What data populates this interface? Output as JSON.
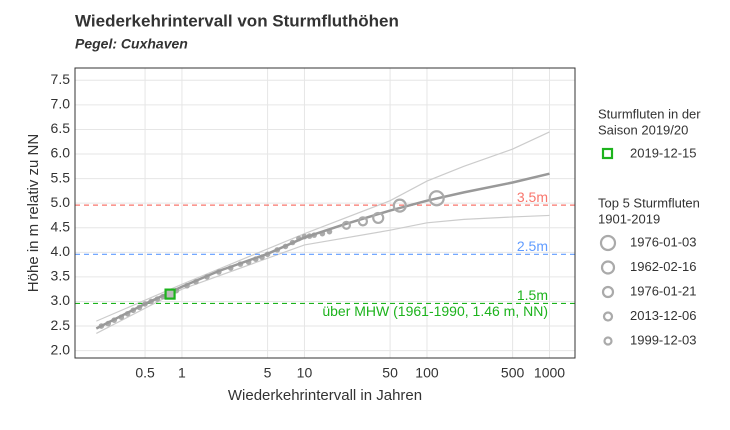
{
  "chart_data": {
    "type": "scatter",
    "title": "Wiederkehrintervall von Sturmfluthöhen",
    "subtitle": "Pegel: Cuxhaven",
    "x_label": "Wiederkehrintervall in Jahren",
    "y_label": "Höhe in m relativ zu NN",
    "log_x": true,
    "grid": true,
    "xlim": [
      0.134,
      1615
    ],
    "ylim": [
      1.85,
      7.75
    ],
    "xticks": [
      0.5,
      1,
      5,
      10,
      50,
      100,
      500,
      1000
    ],
    "yticks": [
      {
        "value": 2,
        "label": "2.0"
      },
      2.5,
      {
        "value": 3,
        "label": "3.0"
      },
      3.5,
      {
        "value": 4,
        "label": "4.0"
      },
      4.5,
      {
        "value": 5,
        "label": "5.0"
      },
      5.5,
      {
        "value": 6,
        "label": "6.0"
      },
      6.5,
      {
        "value": 7,
        "label": "7.0"
      },
      7.5
    ],
    "observations": {
      "color": "#aaaaaa",
      "x": [
        0.22,
        0.25,
        0.28,
        0.32,
        0.36,
        0.4,
        0.45,
        0.5,
        0.56,
        0.63,
        0.7,
        0.9,
        1.1,
        1.3,
        1.6,
        2,
        2.5,
        3,
        3.5,
        4,
        4.5,
        5,
        6,
        7,
        8,
        9,
        10,
        11,
        12,
        14,
        16
      ],
      "y": [
        2.5,
        2.55,
        2.62,
        2.68,
        2.75,
        2.82,
        2.88,
        2.95,
        3.0,
        3.05,
        3.1,
        3.22,
        3.32,
        3.4,
        3.5,
        3.6,
        3.68,
        3.76,
        3.8,
        3.86,
        3.9,
        3.96,
        4.05,
        4.12,
        4.2,
        4.28,
        4.32,
        4.33,
        4.35,
        4.38,
        4.42
      ]
    },
    "fit": {
      "color": "#999999",
      "x": [
        0.2,
        0.5,
        1,
        2,
        5,
        10,
        20,
        50,
        100,
        200,
        500,
        1000
      ],
      "y": [
        2.45,
        2.95,
        3.3,
        3.62,
        3.97,
        4.3,
        4.55,
        4.85,
        5.05,
        5.22,
        5.42,
        5.6
      ]
    },
    "ci_upper": {
      "color": "#cccccc",
      "x": [
        0.2,
        1,
        10,
        50,
        100,
        200,
        500,
        1000
      ],
      "y": [
        2.6,
        3.35,
        4.38,
        5.05,
        5.45,
        5.75,
        6.1,
        6.45
      ]
    },
    "ci_lower": {
      "color": "#cccccc",
      "x": [
        0.2,
        1,
        10,
        50,
        100,
        200,
        500,
        1000
      ],
      "y": [
        2.35,
        3.25,
        4.15,
        4.45,
        4.6,
        4.67,
        4.72,
        4.75
      ]
    },
    "hlines": [
      {
        "y": 4.96,
        "color": "#f8766d",
        "label": "3.5m"
      },
      {
        "y": 3.96,
        "color": "#619cff",
        "label": "2.5m"
      },
      {
        "y": 2.96,
        "color": "#1db31d",
        "label": "1.5m",
        "note": "über MHW (1961-1990, 1.46 m, NN)"
      }
    ],
    "current": {
      "title": [
        "Sturmfluten in der",
        "Saison 2019/20"
      ],
      "color": "#1db31d",
      "name": "2019-12-15",
      "x": 0.8,
      "y": 3.15
    },
    "top5": {
      "title": [
        "Top 5 Sturmfluten",
        "1901-2019"
      ],
      "color": "#aaaaaa",
      "series": [
        {
          "name": "1976-01-03",
          "x": 120,
          "y": 5.1
        },
        {
          "name": "1962-02-16",
          "x": 60,
          "y": 4.95
        },
        {
          "name": "1976-01-21",
          "x": 40,
          "y": 4.7
        },
        {
          "name": "2013-12-06",
          "x": 30,
          "y": 4.63
        },
        {
          "name": "1999-12-03",
          "x": 22,
          "y": 4.55
        }
      ]
    }
  }
}
